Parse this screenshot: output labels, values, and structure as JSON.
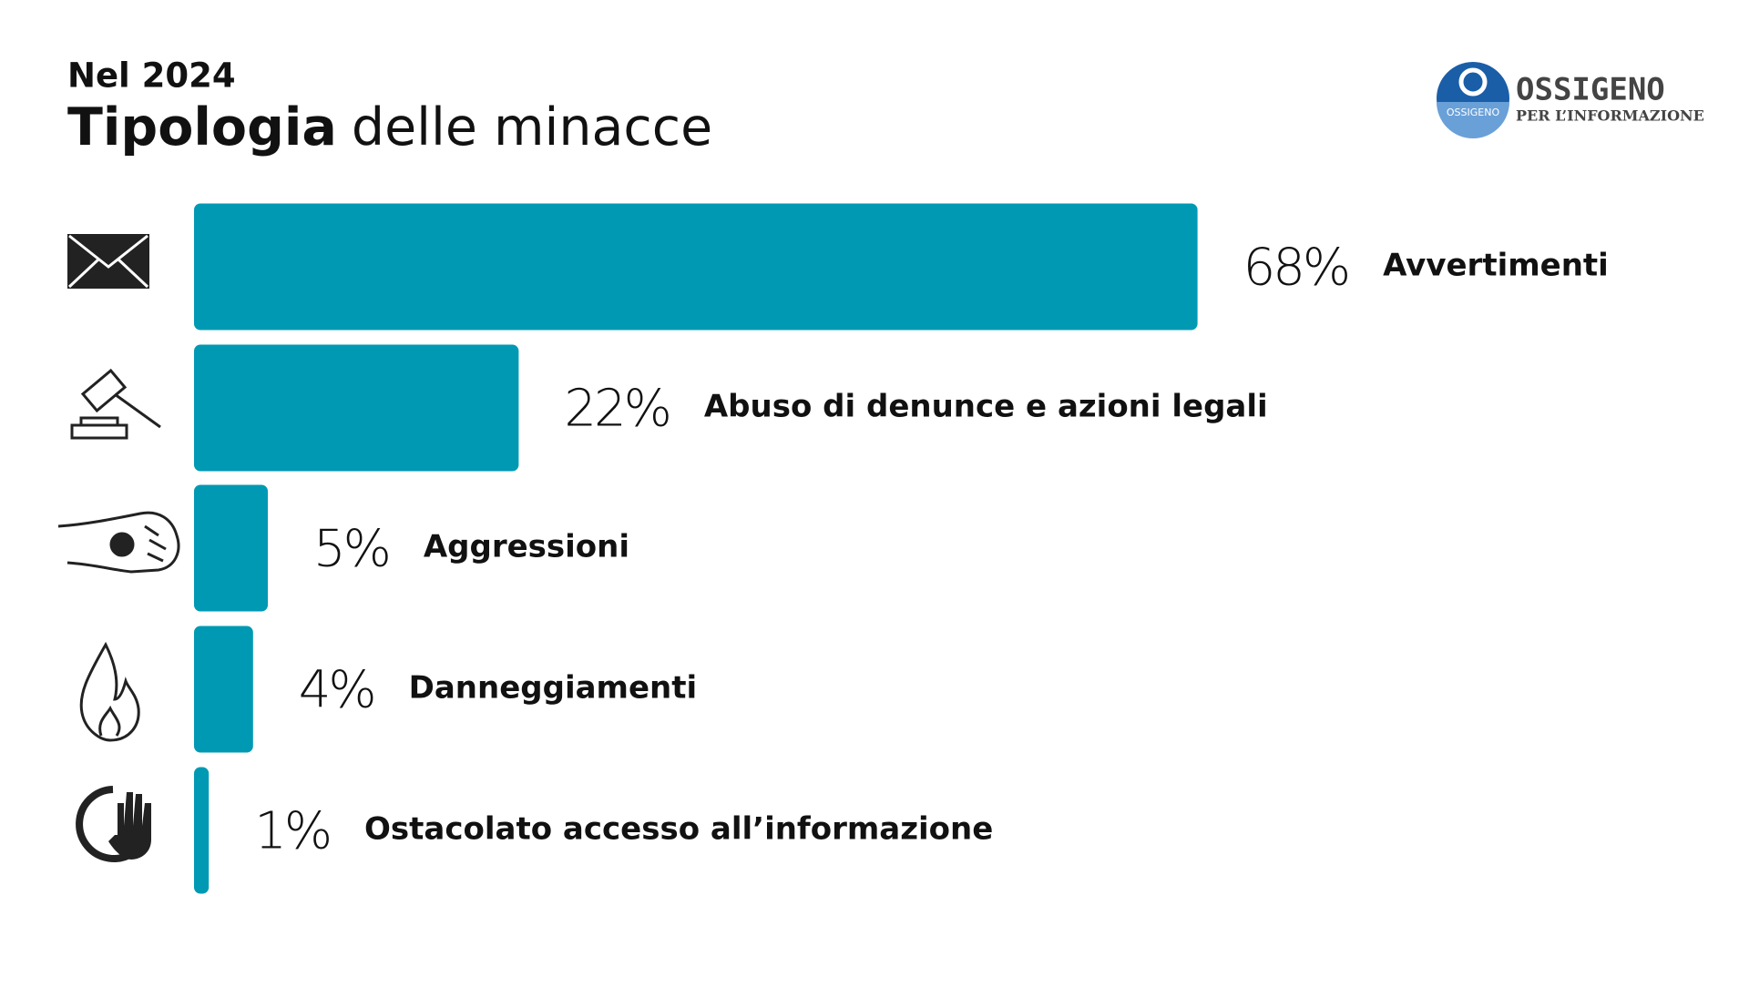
{
  "chart_data": {
    "type": "hbar",
    "subtitle": "Nel 2024",
    "title_parts": [
      "Tipologia",
      "delle minacce"
    ],
    "categories": [
      "Avvertimenti",
      "Abuso di denunce e azioni legali",
      "Aggressioni",
      "Danneggiamenti",
      "Ostacolato accesso all’informazione"
    ],
    "values": [
      68,
      22,
      5,
      4,
      1
    ],
    "value_labels": [
      "68%",
      "22%",
      "5%",
      "4%",
      "1%"
    ],
    "color": "#0099b3"
  },
  "logo": {
    "badge": "OSSIGENO",
    "name": "OSSIGENO",
    "tagline": "PER L’INFORMAZIONE"
  }
}
